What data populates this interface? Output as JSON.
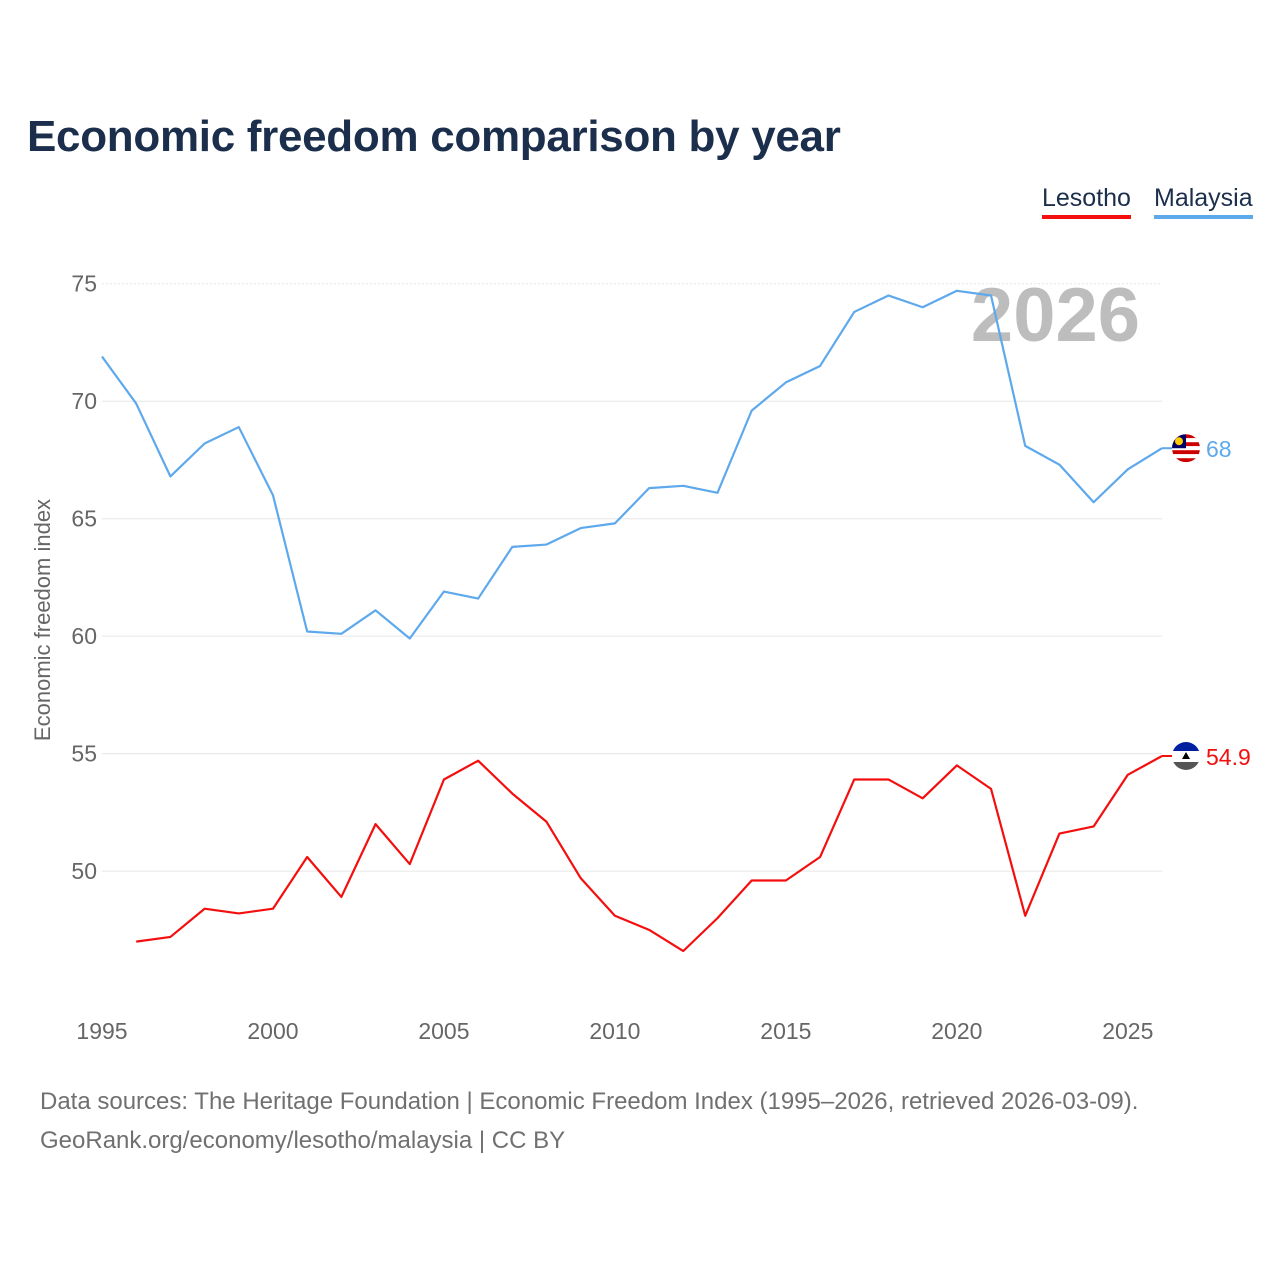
{
  "title": "Economic freedom comparison by year",
  "legend": [
    "Lesotho",
    "Malaysia"
  ],
  "source_line1": "Data sources: The Heritage Foundation | Economic Freedom Index (1995–2026, retrieved 2026-03-09).",
  "source_line2": "GeoRank.org/economy/lesotho/malaysia | CC BY",
  "chart_data": {
    "type": "line",
    "title": "Economic freedom comparison by year",
    "xlabel": "",
    "ylabel": "Economic freedom index",
    "watermark_year": "2026",
    "xlim": [
      1995,
      2026
    ],
    "ylim": [
      44.6,
      77.5
    ],
    "xticks": [
      1995,
      2000,
      2005,
      2010,
      2015,
      2020,
      2025
    ],
    "yticks": [
      50,
      55,
      60,
      65,
      70,
      75
    ],
    "grid": true,
    "legend_position": "top-right",
    "series": [
      {
        "name": "Lesotho",
        "color": "#f40f0f",
        "end_label": "54.9",
        "x": [
          1996,
          1997,
          1998,
          1999,
          2000,
          2001,
          2002,
          2003,
          2004,
          2005,
          2006,
          2007,
          2008,
          2009,
          2010,
          2011,
          2012,
          2013,
          2014,
          2015,
          2016,
          2017,
          2018,
          2019,
          2020,
          2021,
          2022,
          2023,
          2024,
          2025,
          2026
        ],
        "values": [
          47.0,
          47.2,
          48.4,
          48.2,
          48.4,
          50.6,
          48.9,
          52.0,
          50.3,
          53.9,
          54.7,
          53.3,
          52.1,
          49.7,
          48.1,
          47.5,
          46.6,
          48.0,
          49.6,
          49.6,
          50.6,
          53.9,
          53.9,
          53.1,
          54.5,
          53.5,
          48.1,
          51.6,
          51.9,
          54.1,
          54.9
        ]
      },
      {
        "name": "Malaysia",
        "color": "#5ea8ec",
        "end_label": "68",
        "x": [
          1995,
          1996,
          1997,
          1998,
          1999,
          2000,
          2001,
          2002,
          2003,
          2004,
          2005,
          2006,
          2007,
          2008,
          2009,
          2010,
          2011,
          2012,
          2013,
          2014,
          2015,
          2016,
          2017,
          2018,
          2019,
          2020,
          2021,
          2022,
          2023,
          2024,
          2025,
          2026
        ],
        "values": [
          71.9,
          69.9,
          66.8,
          68.2,
          68.9,
          66.0,
          60.2,
          60.1,
          61.1,
          59.9,
          61.9,
          61.6,
          63.8,
          63.9,
          64.6,
          64.8,
          66.3,
          66.4,
          66.1,
          69.6,
          70.8,
          71.5,
          73.8,
          74.5,
          74.0,
          74.7,
          74.5,
          68.1,
          67.3,
          65.7,
          67.1,
          68.0
        ]
      }
    ]
  }
}
